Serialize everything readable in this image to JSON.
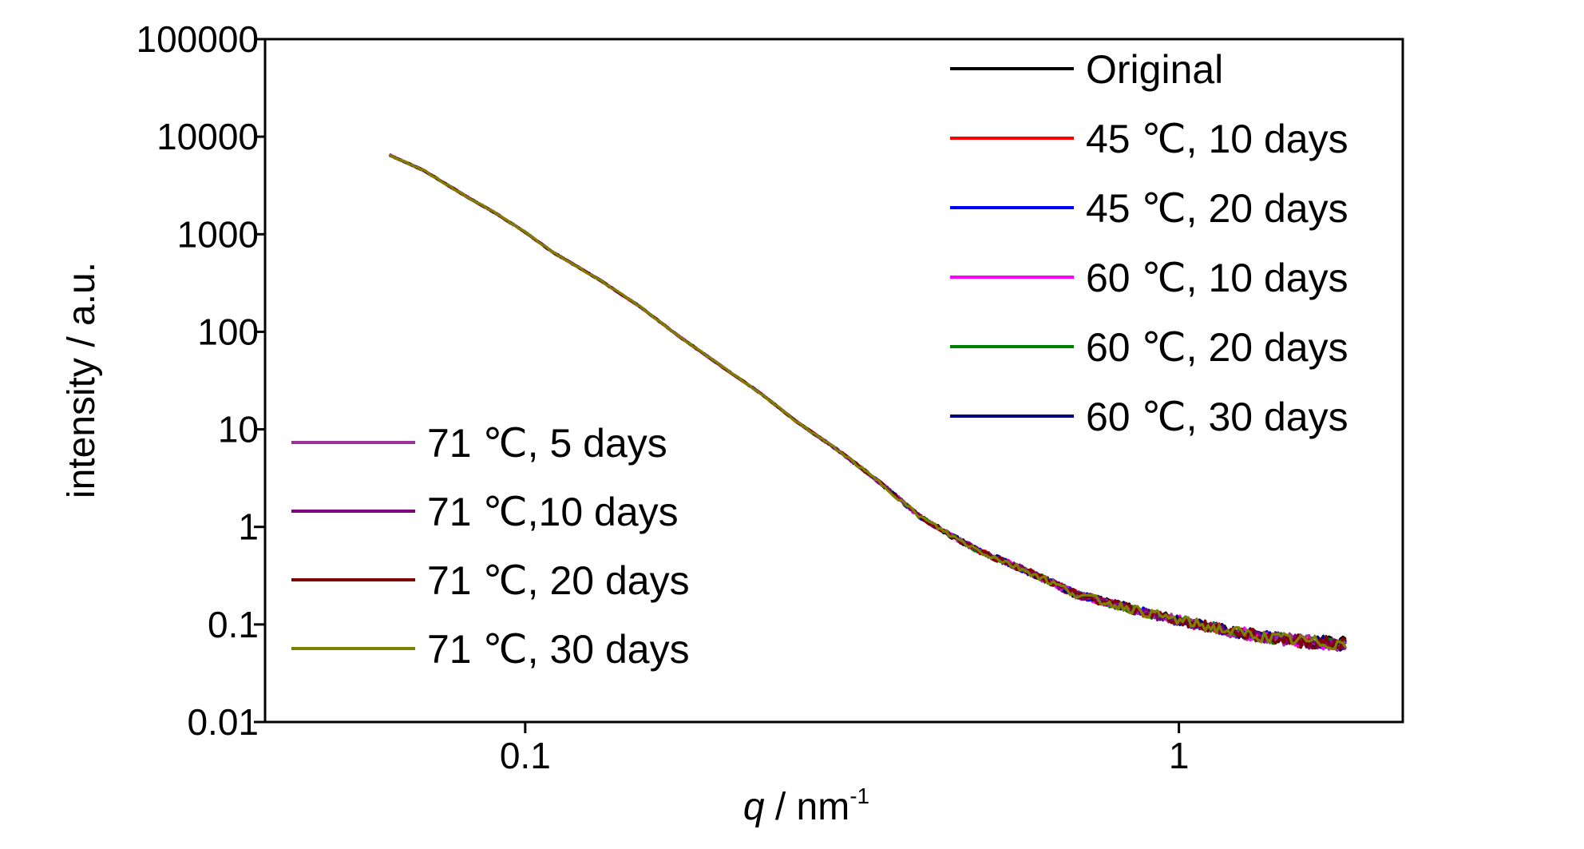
{
  "chart_data": {
    "type": "line",
    "x_scale": "log",
    "y_scale": "log",
    "xlabel_italic": "q",
    "xlabel_rest": " / nm",
    "xlabel_sup": "-1",
    "ylabel": "intensity / a.u.",
    "xlim": [
      0.04,
      2.2
    ],
    "ylim": [
      0.01,
      100000
    ],
    "x_ticks": [
      0.1,
      1
    ],
    "x_tick_labels": [
      "0.1",
      "1"
    ],
    "y_ticks": [
      0.01,
      0.1,
      1,
      10,
      100,
      1000,
      10000,
      100000
    ],
    "y_tick_labels": [
      "0.01",
      "0.1",
      "1",
      "10",
      "100",
      "1000",
      "10000",
      "100000"
    ],
    "grid": false,
    "curve": {
      "x": [
        0.062,
        0.07,
        0.08,
        0.09,
        0.1,
        0.11,
        0.13,
        0.15,
        0.17,
        0.2,
        0.23,
        0.26,
        0.3,
        0.35,
        0.4,
        0.45,
        0.5,
        0.6,
        0.7,
        0.8,
        0.9,
        1.0,
        1.2,
        1.4,
        1.6,
        1.8
      ],
      "y": [
        6500,
        4500,
        2600,
        1650,
        1050,
        660,
        340,
        180,
        95,
        44,
        23,
        12,
        6.2,
        2.8,
        1.3,
        0.8,
        0.55,
        0.33,
        0.2,
        0.16,
        0.13,
        0.11,
        0.085,
        0.072,
        0.066,
        0.063
      ]
    },
    "series": [
      {
        "name": "Original",
        "color": "#000000"
      },
      {
        "name": "45 ℃, 10 days",
        "color": "#ff0000"
      },
      {
        "name": "45 ℃, 20 days",
        "color": "#0000ff"
      },
      {
        "name": "60 ℃, 10 days",
        "color": "#ff00ff"
      },
      {
        "name": "60 ℃, 20 days",
        "color": "#008000"
      },
      {
        "name": "60 ℃, 30 days",
        "color": "#000080"
      },
      {
        "name": "71 ℃, 5 days",
        "color": "#993399"
      },
      {
        "name": "71 ℃,10 days",
        "color": "#800080"
      },
      {
        "name": "71 ℃, 20 days",
        "color": "#800000"
      },
      {
        "name": "71 ℃, 30 days",
        "color": "#808000"
      }
    ],
    "legend_top_right": [
      "Original",
      "45 ℃, 10 days",
      "45 ℃, 20 days",
      "60 ℃, 10 days",
      "60 ℃, 20 days",
      "60 ℃, 30 days"
    ],
    "legend_bottom_left": [
      "71 ℃, 5 days",
      "71 ℃,10 days",
      "71 ℃, 20 days",
      "71 ℃, 30 days"
    ]
  }
}
